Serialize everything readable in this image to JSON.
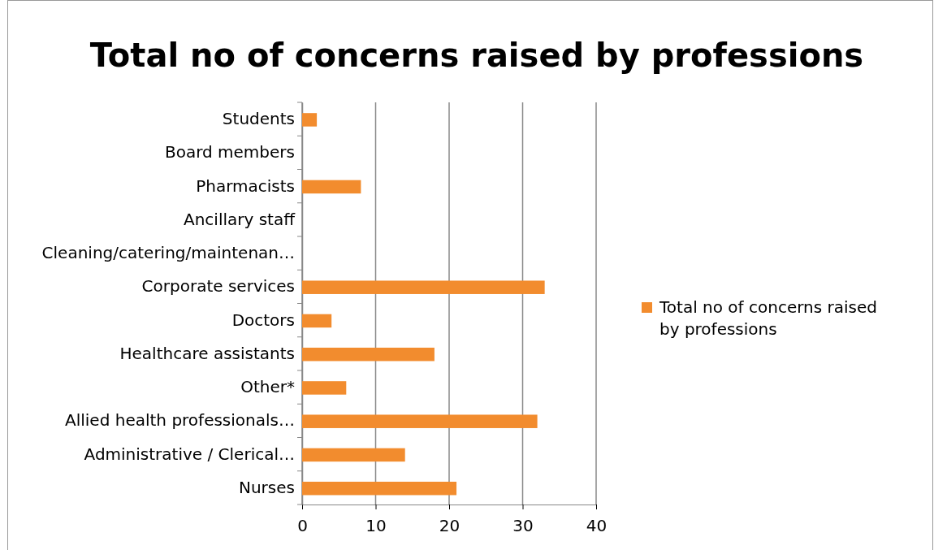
{
  "chart_data": {
    "type": "bar",
    "orientation": "horizontal",
    "title": "Total no of concerns raised by professions",
    "categories": [
      "Students",
      "Board members",
      "Pharmacists",
      "Ancillary staff",
      "Cleaning/catering/maintenan…",
      "Corporate services",
      "Doctors",
      "Healthcare assistants",
      "Other*",
      "Allied health professionals…",
      "Administrative / Clerical…",
      "Nurses"
    ],
    "series": [
      {
        "name": "Total no of concerns raised by professions",
        "color": "#f28c2e",
        "values": [
          2,
          0,
          8,
          0,
          0,
          33,
          4,
          18,
          6,
          32,
          14,
          21
        ]
      }
    ],
    "xlim": [
      0,
      40
    ],
    "xticks": [
      0,
      10,
      20,
      30,
      40
    ],
    "grid": "x",
    "legend": "right"
  }
}
